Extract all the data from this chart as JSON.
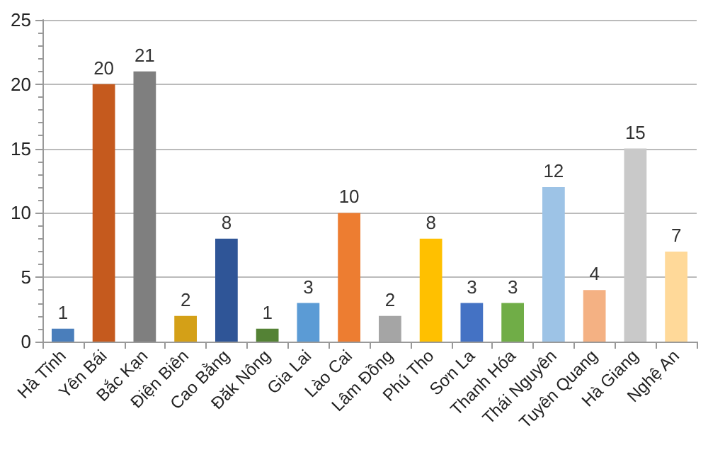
{
  "chart_data": {
    "type": "bar",
    "categories": [
      "Hà Tĩnh",
      "Yên Bái",
      "Bắc Kạn",
      "Điện Biên",
      "Cao Bằng",
      "Đăk Nông",
      "Gia Lai",
      "Lào Cai",
      "Lâm Đồng",
      "Phú Tho",
      "Sơn La",
      "Thanh Hóa",
      "Thái Nguyên",
      "Tuyên Quang",
      "Hà Giang",
      "Nghệ An"
    ],
    "values": [
      1,
      20,
      21,
      2,
      8,
      1,
      3,
      10,
      2,
      8,
      3,
      3,
      12,
      4,
      15,
      7
    ],
    "colors": [
      "#4a7ebb",
      "#c55a1e",
      "#7f7f7f",
      "#d4a017",
      "#2f5597",
      "#548235",
      "#5b9bd5",
      "#ed7d31",
      "#a5a5a5",
      "#ffc000",
      "#4472c4",
      "#70ad47",
      "#9dc3e6",
      "#f4b183",
      "#c9c9c9",
      "#ffd999"
    ],
    "ylim": [
      0,
      25
    ],
    "yticks": [
      0,
      5,
      10,
      15,
      20,
      25
    ],
    "grid": "y",
    "data_labels": true
  }
}
